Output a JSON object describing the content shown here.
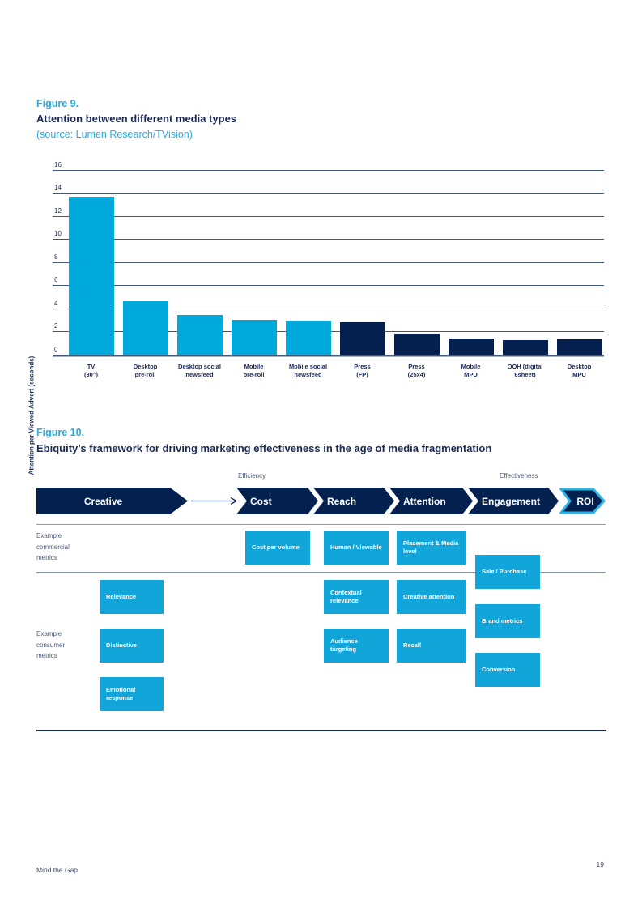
{
  "page": {
    "footer_left": "Mind the Gap",
    "page_number": "19"
  },
  "colors": {
    "accent_cyan": "#27aadf",
    "bar_light_blue": "#00a9dc",
    "bar_navy": "#03204f",
    "box_cyan": "#12a5da",
    "roi_outline_cyan": "#2ab4e8",
    "title_navy": "#1a2a55"
  },
  "figure9": {
    "label": "Figure 9.",
    "title": "Attention between different media types",
    "source": "(source: Lumen Research/TVision)"
  },
  "chart_data": {
    "type": "bar",
    "title": "Attention between different media types",
    "xlabel": "",
    "ylabel": "Attention per Viewed Advert (seconds)",
    "ylim": [
      0,
      16
    ],
    "ytick_step": 2,
    "grid": true,
    "legend": "none",
    "categories": [
      [
        "TV",
        "(30”)"
      ],
      [
        "Desktop",
        "pre-roll"
      ],
      [
        "Desktop social",
        "newsfeed"
      ],
      [
        "Mobile",
        "pre-roll"
      ],
      [
        "Mobile social",
        "newsfeed"
      ],
      [
        "Press",
        "(FP)"
      ],
      [
        "Press",
        "(25x4)"
      ],
      [
        "Mobile",
        "MPU"
      ],
      [
        "OOH (digital",
        "6sheet)"
      ],
      [
        "Desktop",
        "MPU"
      ]
    ],
    "values": [
      13.7,
      4.6,
      3.4,
      3.0,
      2.9,
      2.8,
      1.8,
      1.4,
      1.2,
      1.3
    ],
    "bar_colors": [
      "#00a9dc",
      "#00a9dc",
      "#00a9dc",
      "#00a9dc",
      "#00a9dc",
      "#03204f",
      "#03204f",
      "#03204f",
      "#03204f",
      "#03204f"
    ]
  },
  "figure10": {
    "label": "Figure 10.",
    "title": "Ebiquity’s framework for driving marketing effectiveness in the age of media fragmentation",
    "efficiency_label": "Efficiency",
    "effectiveness_label": "Effectiveness",
    "stages": [
      "Creative",
      "Cost",
      "Reach",
      "Attention",
      "Engagement",
      "ROI"
    ],
    "commercial_label": "Example commercial metrics",
    "consumer_label": "Example consumer metrics",
    "boxes": {
      "cost_per_volume": "Cost per volume",
      "human_viewable": "Human / Viewable",
      "placement_media": "Placement & Media level",
      "sale_purchase": "Sale / Purchase",
      "relevance": "Relevance",
      "contextual_relevance": "Contextual relevance",
      "creative_attention": "Creative attention",
      "brand_metrics": "Brand metrics",
      "distinctive": "Distinctive",
      "audience_targeting": "Audience targeting",
      "recall": "Recall",
      "conversion": "Conversion",
      "emotional_response": "Emotional response"
    }
  }
}
